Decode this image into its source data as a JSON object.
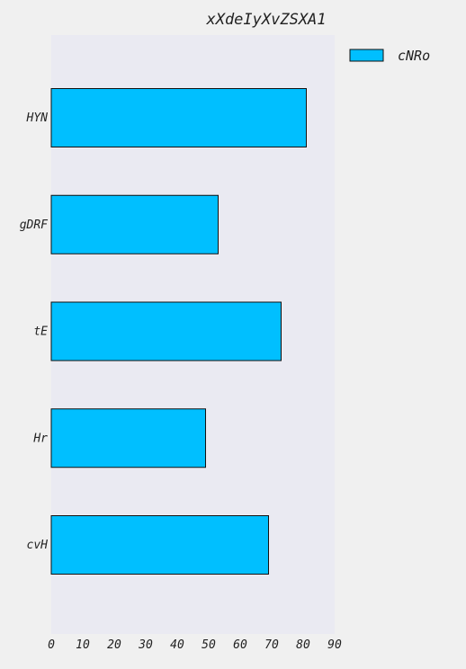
{
  "chart_data": {
    "type": "bar",
    "orientation": "horizontal",
    "title": "xXdeIyXvZSXA1",
    "xlabel": "",
    "ylabel": "",
    "categories": [
      "HYN",
      "gDRF",
      "tE",
      "Hr",
      "cvH"
    ],
    "series": [
      {
        "name": "cNRo",
        "values": [
          81,
          53,
          73,
          49,
          69
        ]
      }
    ],
    "xlim": [
      0,
      90
    ],
    "xticks": [
      0,
      10,
      20,
      30,
      40,
      50,
      60,
      70,
      80,
      90
    ],
    "grid": false,
    "legend_position": "top-right",
    "colors": {
      "bar": "#00bfff",
      "bar_edge": "#111111",
      "plot_background": "#eaeaf2",
      "figure_background": "#f0f0f0"
    }
  }
}
